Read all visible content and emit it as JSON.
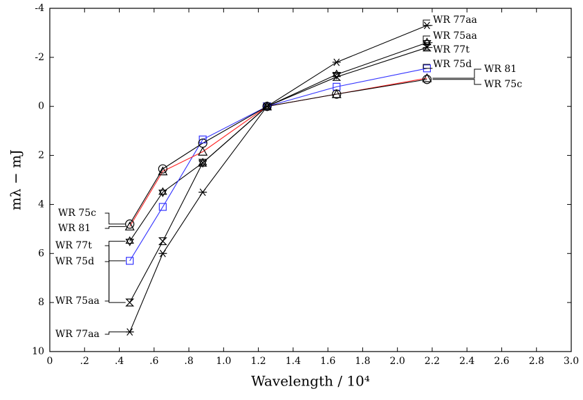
{
  "chart_data": {
    "type": "line",
    "x_label": "Wavelength / 10⁴",
    "y_label": "mλ − mJ",
    "x": [
      0.46,
      0.65,
      0.88,
      1.25,
      1.65,
      2.17
    ],
    "xlim": [
      0,
      3.0
    ],
    "xticks": [
      0,
      {
        "value": 0.2,
        "label": ".2"
      },
      {
        "value": 0.4,
        "label": ".4"
      },
      {
        "value": 0.6,
        "label": ".6"
      },
      {
        "value": 0.8,
        "label": ".8"
      },
      {
        "value": 1.0,
        "label": "1.0"
      },
      1.2,
      1.4,
      1.6,
      1.8,
      {
        "value": 2.0,
        "label": "2.0"
      },
      2.2,
      2.4,
      2.6,
      2.8,
      {
        "value": 3.0,
        "label": "3.0"
      }
    ],
    "ylim": [
      10,
      -4
    ],
    "yticks": [
      -4,
      -2,
      0,
      2,
      4,
      6,
      8,
      10
    ],
    "inverted_y": true,
    "grid": false,
    "series": [
      {
        "name": "WR 77aa",
        "color": "#000000",
        "marker": "asterisk",
        "values": [
          9.2,
          6.0,
          3.5,
          0,
          -1.8,
          -3.3
        ]
      },
      {
        "name": "WR 75aa",
        "color": "#000000",
        "marker": "star",
        "values": [
          5.5,
          3.5,
          2.3,
          0,
          -1.3,
          -2.6
        ]
      },
      {
        "name": "WR 77t",
        "color": "#000000",
        "marker": "hourglass",
        "values": [
          8.0,
          5.5,
          2.3,
          0,
          -1.2,
          -2.4
        ]
      },
      {
        "name": "WR 75d",
        "color": "#3333ff",
        "marker": "square",
        "values": [
          6.3,
          4.1,
          1.35,
          0,
          -0.8,
          -1.55
        ]
      },
      {
        "name": "WR 81",
        "color": "#ff2222",
        "marker": "triangle",
        "values": [
          4.9,
          2.65,
          1.85,
          0,
          -0.5,
          -1.15
        ]
      },
      {
        "name": "WR 75c",
        "color": "#000000",
        "marker": "circle",
        "values": [
          4.8,
          2.55,
          1.5,
          0,
          -0.5,
          -1.1
        ]
      }
    ]
  }
}
